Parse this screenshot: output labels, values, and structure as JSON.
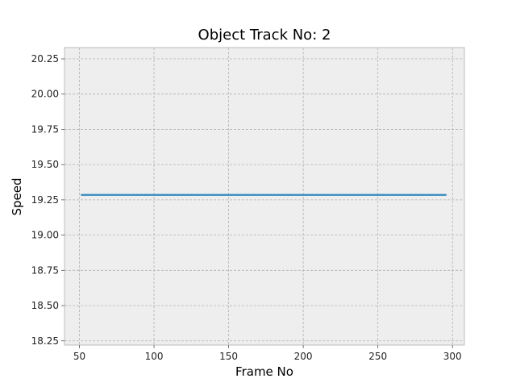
{
  "chart_data": {
    "type": "line",
    "title": "Object Track No: 2",
    "xlabel": "Frame No",
    "ylabel": "Speed",
    "xlim": [
      40,
      308
    ],
    "ylim": [
      18.22,
      20.33
    ],
    "xticks": [
      50,
      100,
      150,
      200,
      250,
      300
    ],
    "yticks": [
      18.25,
      18.5,
      18.75,
      19.0,
      19.25,
      19.5,
      19.75,
      20.0,
      20.25
    ],
    "xtick_labels": [
      "50",
      "100",
      "150",
      "200",
      "250",
      "300"
    ],
    "ytick_labels": [
      "18.25",
      "18.50",
      "18.75",
      "19.00",
      "19.25",
      "19.50",
      "19.75",
      "20.00",
      "20.25"
    ],
    "grid": true,
    "series": [
      {
        "x": [
          51,
          296
        ],
        "y": [
          19.285,
          19.285
        ]
      }
    ],
    "colors": {
      "line": "#348abd",
      "plot_background": "#eeeeee",
      "grid": "#b2b2b2",
      "spine": "#bcbcbc"
    }
  }
}
